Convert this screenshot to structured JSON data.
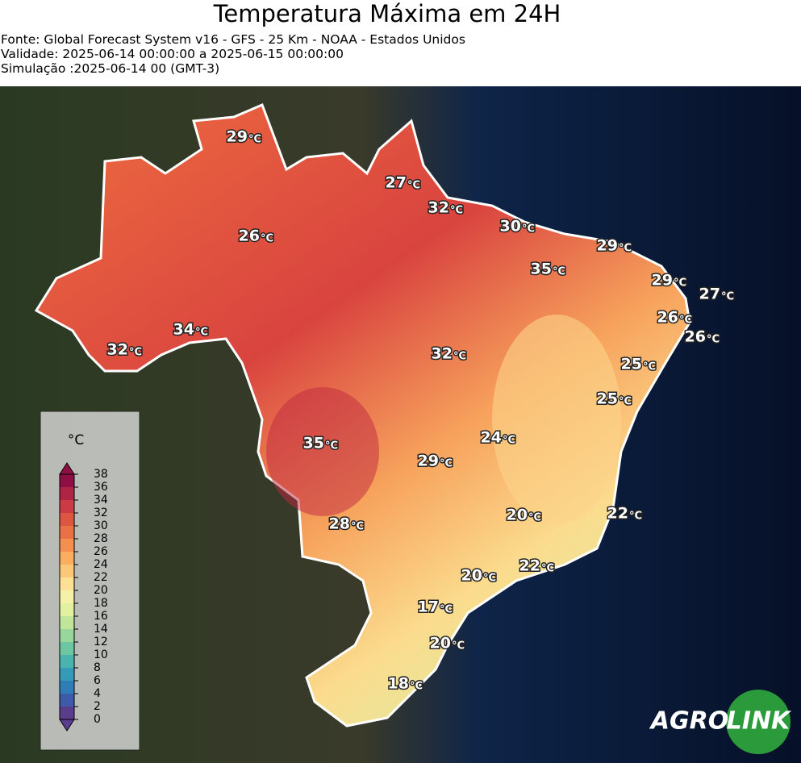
{
  "header": {
    "title": "Temperatura Máxima em 24H",
    "lines": [
      "Fonte: Global Forecast System v16 - GFS - 25 Km - NOAA - Estados Unidos",
      "Validade: 2025-06-14 00:00:00 a 2025-06-15 00:00:00",
      "Simulação :2025-06-14 00 (GMT-3)"
    ]
  },
  "map": {
    "unit": "°C",
    "labels": [
      29,
      27,
      32,
      30,
      26,
      29,
      35,
      29,
      27,
      26,
      34,
      26,
      32,
      32,
      25,
      25,
      24,
      35,
      29,
      20,
      22,
      28,
      22,
      20,
      17,
      20,
      18
    ]
  },
  "colorbar": {
    "unit": "°C",
    "ticks": [
      0,
      2,
      4,
      6,
      8,
      10,
      12,
      14,
      16,
      18,
      20,
      22,
      24,
      26,
      28,
      30,
      32,
      34,
      36,
      38
    ],
    "colors": [
      "#5b3d8e",
      "#3d5ba8",
      "#2f7db6",
      "#3599b8",
      "#4ab3ad",
      "#6cc7a0",
      "#98d79c",
      "#c2e59c",
      "#e3f0a0",
      "#f6f1a8",
      "#fbe095",
      "#fcc878",
      "#fbad60",
      "#f58f50",
      "#ea7045",
      "#de5540",
      "#cc3a43",
      "#b02345",
      "#8e0f43"
    ]
  },
  "logo": {
    "agro": "AGRO",
    "link": "LINK"
  }
}
